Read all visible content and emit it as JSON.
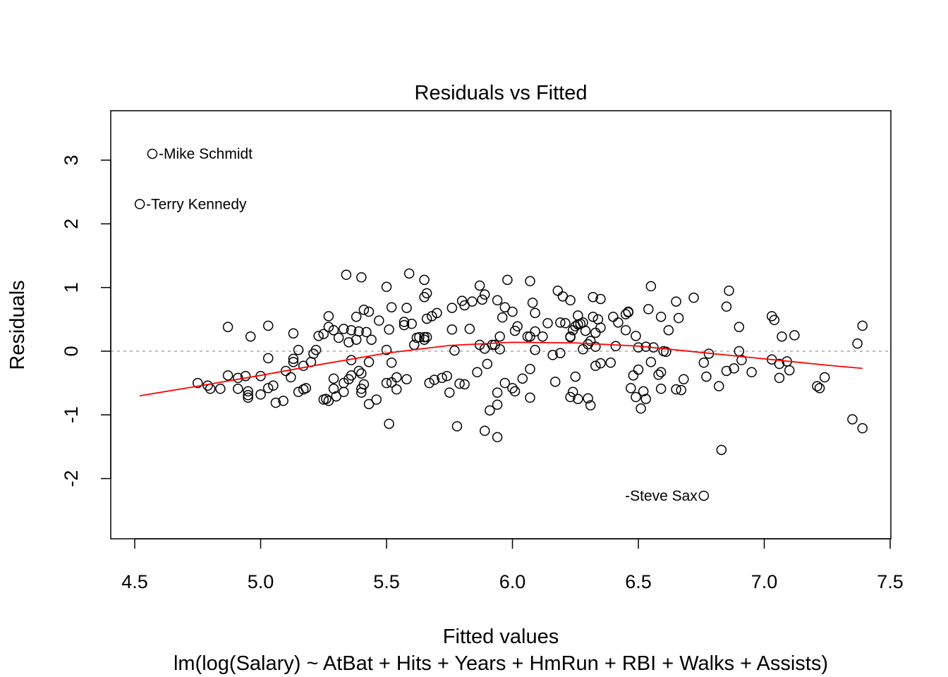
{
  "chart_data": {
    "type": "scatter",
    "title": "Residuals vs Fitted",
    "xlabel": "Fitted values",
    "subtitle": "lm(log(Salary) ~ AtBat + Hits + Years + HmRun + RBI + Walks + Assists)",
    "ylabel": "Residuals",
    "xlim": [
      4.41,
      7.48
    ],
    "ylim": [
      -2.95,
      3.78
    ],
    "xticks": [
      "4.5",
      "5.0",
      "5.5",
      "6.0",
      "6.5",
      "7.0",
      "7.5"
    ],
    "xtick_values": [
      4.5,
      5.0,
      5.5,
      6.0,
      6.5,
      7.0,
      7.5
    ],
    "yticks": [
      "-2",
      "-1",
      "0",
      "1",
      "2",
      "3"
    ],
    "ytick_values": [
      -2,
      -1,
      0,
      1,
      2,
      3
    ],
    "reference_line": {
      "y": 0,
      "style": "dotted",
      "color": "#aaaaaa"
    },
    "smoother": {
      "color": "#ff0000",
      "x": [
        4.52,
        4.75,
        5.0,
        5.25,
        5.5,
        5.75,
        6.0,
        6.25,
        6.5,
        6.75,
        7.0,
        7.25,
        7.39
      ],
      "y": [
        -0.7,
        -0.55,
        -0.38,
        -0.2,
        -0.03,
        0.09,
        0.14,
        0.13,
        0.08,
        -0.02,
        -0.12,
        -0.22,
        -0.27
      ]
    },
    "labeled_points": [
      {
        "label": "Mike Schmidt",
        "x": 4.57,
        "y": 3.1,
        "side": "right"
      },
      {
        "label": "Terry Kennedy",
        "x": 4.52,
        "y": 2.31,
        "side": "right"
      },
      {
        "label": "Steve Sax",
        "x": 6.76,
        "y": -2.27,
        "side": "left"
      }
    ],
    "points": [
      [
        4.75,
        -0.5
      ],
      [
        4.79,
        -0.54
      ],
      [
        4.8,
        -0.59
      ],
      [
        4.84,
        -0.59
      ],
      [
        4.87,
        0.38
      ],
      [
        4.87,
        -0.38
      ],
      [
        4.91,
        -0.59
      ],
      [
        4.91,
        -0.42
      ],
      [
        4.94,
        -0.39
      ],
      [
        4.95,
        -0.69
      ],
      [
        4.95,
        -0.73
      ],
      [
        4.95,
        -0.63
      ],
      [
        4.96,
        0.23
      ],
      [
        5.0,
        -0.39
      ],
      [
        5.0,
        -0.68
      ],
      [
        5.03,
        -0.11
      ],
      [
        5.03,
        0.4
      ],
      [
        5.03,
        -0.58
      ],
      [
        5.05,
        -0.54
      ],
      [
        5.06,
        -0.81
      ],
      [
        5.09,
        -0.78
      ],
      [
        5.1,
        -0.31
      ],
      [
        5.12,
        -0.41
      ],
      [
        5.13,
        0.28
      ],
      [
        5.13,
        -0.17
      ],
      [
        5.13,
        -0.12
      ],
      [
        5.15,
        0.02
      ],
      [
        5.15,
        -0.64
      ],
      [
        5.17,
        -0.6
      ],
      [
        5.17,
        -0.23
      ],
      [
        5.18,
        -0.58
      ],
      [
        5.2,
        -0.17
      ],
      [
        5.21,
        -0.04
      ],
      [
        5.22,
        0.02
      ],
      [
        5.23,
        0.24
      ],
      [
        5.25,
        0.27
      ],
      [
        5.25,
        -0.76
      ],
      [
        5.26,
        -0.75
      ],
      [
        5.27,
        -0.78
      ],
      [
        5.27,
        0.55
      ],
      [
        5.27,
        0.38
      ],
      [
        5.29,
        -0.43
      ],
      [
        5.29,
        -0.59
      ],
      [
        5.29,
        0.33
      ],
      [
        5.3,
        -0.71
      ],
      [
        5.31,
        0.21
      ],
      [
        5.33,
        0.35
      ],
      [
        5.33,
        -0.5
      ],
      [
        5.33,
        -0.64
      ],
      [
        5.34,
        1.2
      ],
      [
        5.35,
        -0.44
      ],
      [
        5.35,
        0.14
      ],
      [
        5.36,
        -0.38
      ],
      [
        5.36,
        -0.14
      ],
      [
        5.36,
        0.33
      ],
      [
        5.38,
        0.54
      ],
      [
        5.38,
        0.18
      ],
      [
        5.39,
        0.31
      ],
      [
        5.39,
        -0.31
      ],
      [
        5.4,
        -0.59
      ],
      [
        5.4,
        -0.65
      ],
      [
        5.4,
        1.16
      ],
      [
        5.4,
        -0.35
      ],
      [
        5.41,
        0.65
      ],
      [
        5.41,
        -0.52
      ],
      [
        5.42,
        0.3
      ],
      [
        5.43,
        -0.83
      ],
      [
        5.43,
        0.62
      ],
      [
        5.43,
        -0.17
      ],
      [
        5.44,
        0.18
      ],
      [
        5.46,
        -0.76
      ],
      [
        5.47,
        0.48
      ],
      [
        5.5,
        1.01
      ],
      [
        5.5,
        -0.5
      ],
      [
        5.5,
        0.02
      ],
      [
        5.51,
        -1.14
      ],
      [
        5.51,
        0.34
      ],
      [
        5.52,
        -0.18
      ],
      [
        5.52,
        0.69
      ],
      [
        5.52,
        -0.49
      ],
      [
        5.54,
        -0.6
      ],
      [
        5.54,
        -0.41
      ],
      [
        5.57,
        0.46
      ],
      [
        5.57,
        0.41
      ],
      [
        5.58,
        0.68
      ],
      [
        5.58,
        -0.44
      ],
      [
        5.59,
        1.22
      ],
      [
        5.6,
        0.43
      ],
      [
        5.61,
        0.1
      ],
      [
        5.62,
        0.21
      ],
      [
        5.63,
        0.22
      ],
      [
        5.65,
        0.85
      ],
      [
        5.65,
        0.22
      ],
      [
        5.65,
        1.12
      ],
      [
        5.65,
        0.18
      ],
      [
        5.66,
        0.91
      ],
      [
        5.66,
        0.51
      ],
      [
        5.66,
        0.22
      ],
      [
        5.67,
        -0.5
      ],
      [
        5.68,
        0.55
      ],
      [
        5.69,
        -0.45
      ],
      [
        5.7,
        0.6
      ],
      [
        5.72,
        -0.42
      ],
      [
        5.74,
        -0.39
      ],
      [
        5.75,
        -0.65
      ],
      [
        5.76,
        0.34
      ],
      [
        5.76,
        0.68
      ],
      [
        5.77,
        0.01
      ],
      [
        5.78,
        -1.18
      ],
      [
        5.79,
        -0.51
      ],
      [
        5.8,
        0.79
      ],
      [
        5.81,
        0.72
      ],
      [
        5.81,
        -0.52
      ],
      [
        5.83,
        0.35
      ],
      [
        5.84,
        0.78
      ],
      [
        5.86,
        -0.33
      ],
      [
        5.87,
        1.03
      ],
      [
        5.87,
        0.1
      ],
      [
        5.88,
        0.81
      ],
      [
        5.89,
        0.89
      ],
      [
        5.89,
        -1.25
      ],
      [
        5.89,
        0.04
      ],
      [
        5.9,
        -0.2
      ],
      [
        5.91,
        -0.93
      ],
      [
        5.92,
        0.1
      ],
      [
        5.93,
        0.1
      ],
      [
        5.94,
        -0.65
      ],
      [
        5.94,
        0.8
      ],
      [
        5.94,
        -1.35
      ],
      [
        5.94,
        -0.84
      ],
      [
        5.95,
        0.03
      ],
      [
        5.95,
        0.23
      ],
      [
        5.96,
        0.53
      ],
      [
        5.97,
        -0.5
      ],
      [
        5.97,
        0.69
      ],
      [
        5.98,
        1.12
      ],
      [
        6.0,
        -0.58
      ],
      [
        6.0,
        0.62
      ],
      [
        6.01,
        -0.63
      ],
      [
        6.01,
        0.32
      ],
      [
        6.02,
        0.39
      ],
      [
        6.04,
        -0.43
      ],
      [
        6.06,
        0.23
      ],
      [
        6.07,
        -0.28
      ],
      [
        6.07,
        0.23
      ],
      [
        6.07,
        -0.73
      ],
      [
        6.07,
        1.1
      ],
      [
        6.08,
        0.76
      ],
      [
        6.09,
        0.6
      ],
      [
        6.09,
        0.31
      ],
      [
        6.09,
        0.02
      ],
      [
        6.12,
        0.23
      ],
      [
        6.14,
        0.44
      ],
      [
        6.16,
        -0.06
      ],
      [
        6.17,
        -0.48
      ],
      [
        6.18,
        0.95
      ],
      [
        6.19,
        0.45
      ],
      [
        6.19,
        -0.03
      ],
      [
        6.2,
        0.86
      ],
      [
        6.21,
        0.44
      ],
      [
        6.23,
        0.23
      ],
      [
        6.23,
        -0.72
      ],
      [
        6.23,
        0.8
      ],
      [
        6.23,
        0.22
      ],
      [
        6.24,
        -0.64
      ],
      [
        6.24,
        0.33
      ],
      [
        6.25,
        -0.4
      ],
      [
        6.25,
        0.39
      ],
      [
        6.26,
        0.56
      ],
      [
        6.26,
        0.42
      ],
      [
        6.26,
        -0.75
      ],
      [
        6.27,
        0.43
      ],
      [
        6.28,
        0.03
      ],
      [
        6.28,
        0.45
      ],
      [
        6.29,
        0.32
      ],
      [
        6.3,
        0.11
      ],
      [
        6.3,
        -0.74
      ],
      [
        6.31,
        0.16
      ],
      [
        6.31,
        -0.85
      ],
      [
        6.32,
        0.85
      ],
      [
        6.32,
        0.54
      ],
      [
        6.33,
        0.07
      ],
      [
        6.33,
        0.29
      ],
      [
        6.33,
        -0.23
      ],
      [
        6.34,
        0.5
      ],
      [
        6.35,
        0.82
      ],
      [
        6.35,
        0.37
      ],
      [
        6.35,
        -0.19
      ],
      [
        6.39,
        -0.18
      ],
      [
        6.4,
        0.54
      ],
      [
        6.41,
        0.08
      ],
      [
        6.42,
        0.45
      ],
      [
        6.45,
        0.33
      ],
      [
        6.45,
        0.58
      ],
      [
        6.46,
        0.62
      ],
      [
        6.46,
        0.61
      ],
      [
        6.47,
        -0.58
      ],
      [
        6.48,
        -0.38
      ],
      [
        6.49,
        -0.72
      ],
      [
        6.49,
        0.24
      ],
      [
        6.5,
        -0.29
      ],
      [
        6.5,
        0.06
      ],
      [
        6.51,
        -0.9
      ],
      [
        6.52,
        -0.63
      ],
      [
        6.53,
        -0.75
      ],
      [
        6.53,
        0.07
      ],
      [
        6.54,
        0.66
      ],
      [
        6.55,
        -0.17
      ],
      [
        6.55,
        1.02
      ],
      [
        6.56,
        0.06
      ],
      [
        6.58,
        -0.37
      ],
      [
        6.59,
        0.54
      ],
      [
        6.59,
        -0.33
      ],
      [
        6.59,
        -0.59
      ],
      [
        6.6,
        0.0
      ],
      [
        6.61,
        -0.01
      ],
      [
        6.62,
        0.33
      ],
      [
        6.65,
        0.78
      ],
      [
        6.65,
        -0.6
      ],
      [
        6.66,
        0.52
      ],
      [
        6.67,
        -0.61
      ],
      [
        6.68,
        -0.44
      ],
      [
        6.72,
        0.84
      ],
      [
        6.76,
        -0.18
      ],
      [
        6.77,
        -0.4
      ],
      [
        6.78,
        -0.04
      ],
      [
        6.82,
        -0.55
      ],
      [
        6.83,
        -1.55
      ],
      [
        6.85,
        -0.31
      ],
      [
        6.85,
        0.7
      ],
      [
        6.86,
        0.95
      ],
      [
        6.88,
        -0.27
      ],
      [
        6.9,
        0.38
      ],
      [
        6.9,
        0.0
      ],
      [
        6.91,
        -0.14
      ],
      [
        6.95,
        -0.33
      ],
      [
        7.03,
        0.55
      ],
      [
        7.03,
        -0.13
      ],
      [
        7.04,
        0.49
      ],
      [
        7.06,
        -0.42
      ],
      [
        7.06,
        -0.2
      ],
      [
        7.07,
        0.23
      ],
      [
        7.09,
        -0.16
      ],
      [
        7.1,
        -0.3
      ],
      [
        7.12,
        0.25
      ],
      [
        7.21,
        -0.55
      ],
      [
        7.22,
        -0.58
      ],
      [
        7.24,
        -0.41
      ],
      [
        7.35,
        -1.07
      ],
      [
        7.37,
        0.12
      ],
      [
        7.39,
        0.4
      ],
      [
        7.39,
        -1.21
      ]
    ]
  }
}
